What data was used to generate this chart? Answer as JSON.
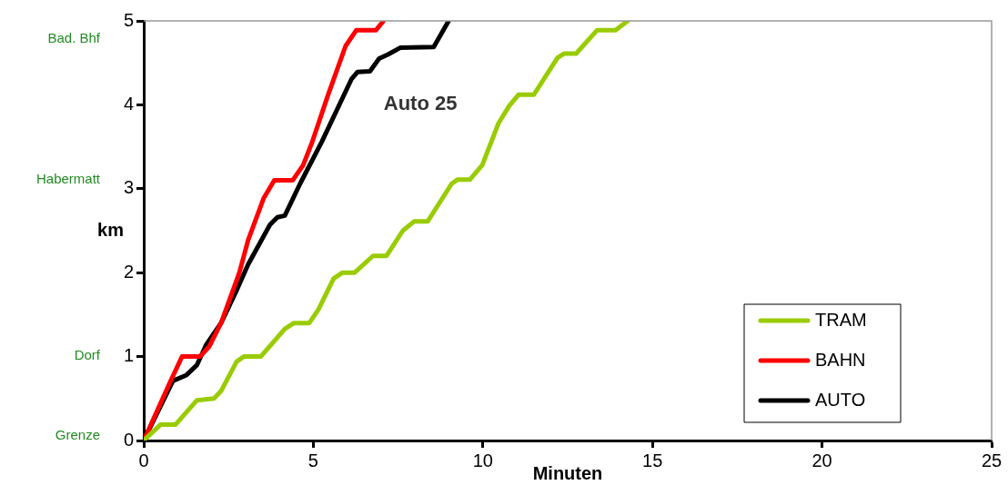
{
  "chart_data": {
    "type": "line",
    "xlabel": "Minuten",
    "ylabel": "km",
    "xlim": [
      0,
      25
    ],
    "xticks": [
      0,
      5,
      10,
      15,
      20,
      25
    ],
    "ylim": [
      0,
      5
    ],
    "yticks": [
      0,
      1,
      2,
      3,
      4,
      5
    ],
    "grid": false,
    "legend": "bottom right",
    "marker": "none",
    "line_style": "solid",
    "annotations": [
      "Auto 25",
      "Bad. Bhf",
      "Habermatt",
      "Dorf",
      "Grenze"
    ],
    "series": [
      {
        "name": "TRAM",
        "color": "#99cc00",
        "x": [
          0,
          0.5,
          0.94,
          1.57,
          2.07,
          2.28,
          2.74,
          2.95,
          3.45,
          4.16,
          4.43,
          4.88,
          5.15,
          5.6,
          5.86,
          6.22,
          6.76,
          7.16,
          7.64,
          7.97,
          8.37,
          9.08,
          9.26,
          9.62,
          9.98,
          10.46,
          10.78,
          11.05,
          11.5,
          12.2,
          12.39,
          12.75,
          13.37,
          13.91,
          14.27
        ],
        "values": [
          0,
          0.19,
          0.19,
          0.48,
          0.5,
          0.59,
          0.94,
          1,
          1,
          1.33,
          1.4,
          1.4,
          1.56,
          1.93,
          2,
          2,
          2.2,
          2.2,
          2.5,
          2.61,
          2.61,
          3.06,
          3.11,
          3.11,
          3.28,
          3.78,
          3.99,
          4.12,
          4.12,
          4.56,
          4.61,
          4.61,
          4.89,
          4.89,
          5
        ]
      },
      {
        "name": "BAHN",
        "color": "#ff0000",
        "x": [
          0,
          0.77,
          1.13,
          1.66,
          1.93,
          2.28,
          2.82,
          3.08,
          3.54,
          3.85,
          4.39,
          4.7,
          4.97,
          5.42,
          5.95,
          6.27,
          6.85,
          7.07
        ],
        "values": [
          0,
          0.69,
          1,
          1,
          1.12,
          1.4,
          2,
          2.39,
          2.89,
          3.1,
          3.1,
          3.28,
          3.56,
          4.1,
          4.7,
          4.89,
          4.89,
          5
        ]
      },
      {
        "name": "AUTO",
        "color": "#000000",
        "x": [
          0,
          0.86,
          1.26,
          1.57,
          1.84,
          2.28,
          2.74,
          3.08,
          3.72,
          3.94,
          4.16,
          4.61,
          5.25,
          6.13,
          6.3,
          6.67,
          6.94,
          7.2,
          7.56,
          8.55,
          8.99
        ],
        "values": [
          0,
          0.71,
          0.78,
          0.9,
          1.14,
          1.4,
          1.79,
          2.1,
          2.57,
          2.66,
          2.68,
          3.06,
          3.56,
          4.31,
          4.39,
          4.4,
          4.55,
          4.6,
          4.68,
          4.69,
          5
        ]
      }
    ]
  }
}
